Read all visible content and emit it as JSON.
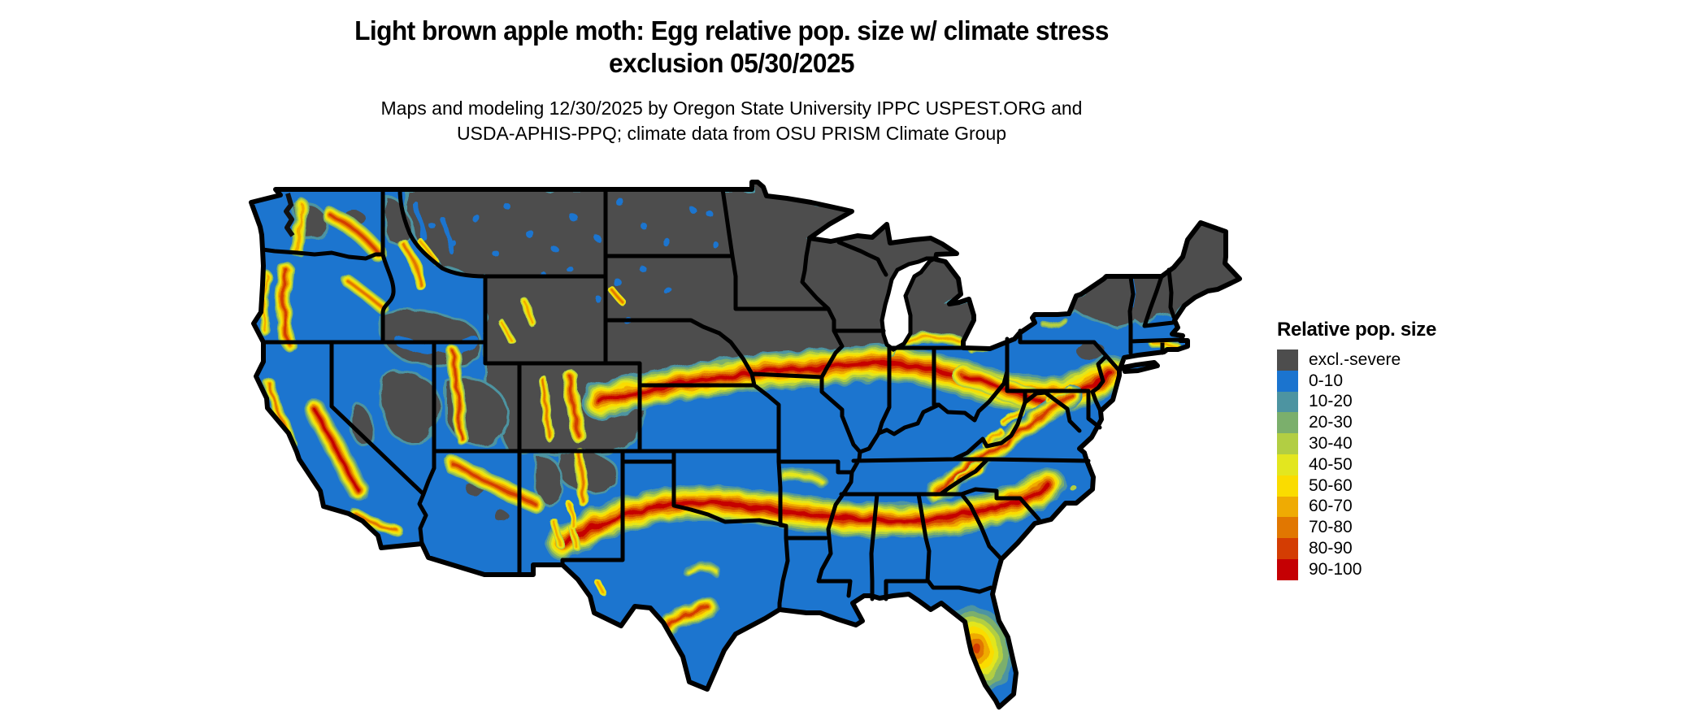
{
  "title": {
    "lines": [
      "Light brown apple moth: Egg relative pop. size w/ climate stress",
      "exclusion 05/30/2025"
    ]
  },
  "subtitle": {
    "lines": [
      "Maps and modeling 12/30/2025 by Oregon State University IPPC USPEST.ORG and",
      "USDA-APHIS-PPQ; climate data from OSU PRISM Climate Group"
    ]
  },
  "legend": {
    "title": "Relative pop. size",
    "items": [
      {
        "label": "excl.-severe",
        "color": "#4D4D4D"
      },
      {
        "label": "0-10",
        "color": "#1B74CF"
      },
      {
        "label": "10-20",
        "color": "#4D94A1"
      },
      {
        "label": "20-30",
        "color": "#7BAF6C"
      },
      {
        "label": "30-40",
        "color": "#B2CE43"
      },
      {
        "label": "40-50",
        "color": "#E3E61F"
      },
      {
        "label": "50-60",
        "color": "#FADC00"
      },
      {
        "label": "60-70",
        "color": "#EFAB03"
      },
      {
        "label": "70-80",
        "color": "#E17701"
      },
      {
        "label": "80-90",
        "color": "#D43D03"
      },
      {
        "label": "90-100",
        "color": "#C50003"
      }
    ]
  },
  "palette": {
    "excl": "#4D4D4D",
    "b0_10": "#1B74CF",
    "t10_20": "#4D94A1",
    "g20_30": "#7BAF6C",
    "yg30_40": "#B2CE43",
    "y40_50": "#E3E61F",
    "go50_60": "#FADC00",
    "o60_70": "#EFAB03",
    "do70_80": "#E17701",
    "ro80_90": "#D43D03",
    "r90_100": "#C50003",
    "border": "#000000"
  }
}
